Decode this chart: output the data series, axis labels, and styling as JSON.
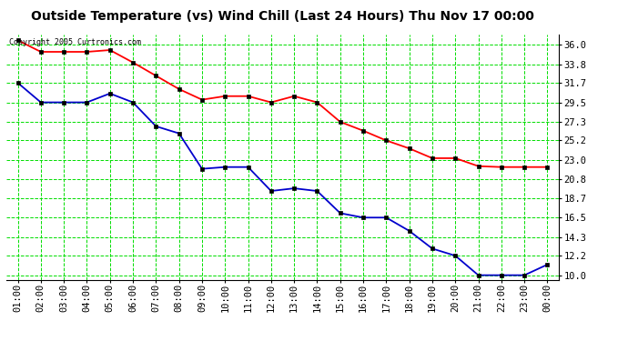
{
  "title": "Outside Temperature (vs) Wind Chill (Last 24 Hours) Thu Nov 17 00:00",
  "copyright": "Copyright 2005 Curtronics.com",
  "x_labels": [
    "01:00",
    "02:00",
    "03:00",
    "04:00",
    "05:00",
    "06:00",
    "07:00",
    "08:00",
    "09:00",
    "10:00",
    "11:00",
    "12:00",
    "13:00",
    "14:00",
    "15:00",
    "16:00",
    "17:00",
    "18:00",
    "19:00",
    "20:00",
    "21:00",
    "22:00",
    "23:00",
    "00:00"
  ],
  "temp_red": [
    36.5,
    35.2,
    35.2,
    35.2,
    35.4,
    34.0,
    32.5,
    31.0,
    29.8,
    30.2,
    30.2,
    29.5,
    30.2,
    29.5,
    27.3,
    26.3,
    25.2,
    24.3,
    23.2,
    23.2,
    22.3,
    22.2,
    22.2,
    22.2
  ],
  "wind_blue": [
    31.7,
    29.5,
    29.5,
    29.5,
    30.5,
    29.5,
    26.8,
    26.0,
    22.0,
    22.2,
    22.2,
    19.5,
    19.8,
    19.5,
    17.0,
    16.5,
    16.5,
    15.0,
    13.0,
    12.2,
    10.0,
    10.0,
    10.0,
    11.2
  ],
  "y_ticks": [
    10.0,
    12.2,
    14.3,
    16.5,
    18.7,
    20.8,
    23.0,
    25.2,
    27.3,
    29.5,
    31.7,
    33.8,
    36.0
  ],
  "ylim": [
    9.5,
    37.2
  ],
  "bg_color": "#ffffff",
  "plot_bg": "#ffffff",
  "grid_color": "#00dd00",
  "red_color": "#ff0000",
  "blue_color": "#0000cc",
  "title_fontsize": 10,
  "tick_fontsize": 7.5
}
